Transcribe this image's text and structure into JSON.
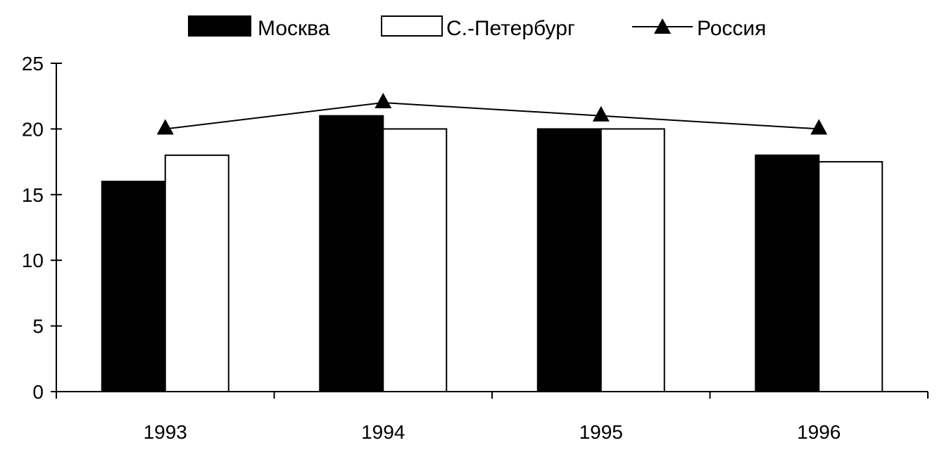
{
  "chart_data": {
    "type": "bar",
    "title": "",
    "xlabel": "",
    "ylabel": "",
    "categories": [
      "1993",
      "1994",
      "1995",
      "1996"
    ],
    "ylim": [
      0,
      25
    ],
    "yticks": [
      0,
      5,
      10,
      15,
      20,
      25
    ],
    "grid": false,
    "legend_position": "top",
    "series": [
      {
        "name": "Москва",
        "kind": "bar",
        "color": "#000000",
        "values": [
          16,
          21,
          20,
          18
        ]
      },
      {
        "name": "С.-Петербург",
        "kind": "bar",
        "color": "#ffffff",
        "values": [
          18,
          20,
          20,
          17.5
        ]
      },
      {
        "name": "Россия",
        "kind": "line",
        "marker": "triangle",
        "color": "#000000",
        "values": [
          20,
          22,
          21,
          20
        ]
      }
    ]
  }
}
